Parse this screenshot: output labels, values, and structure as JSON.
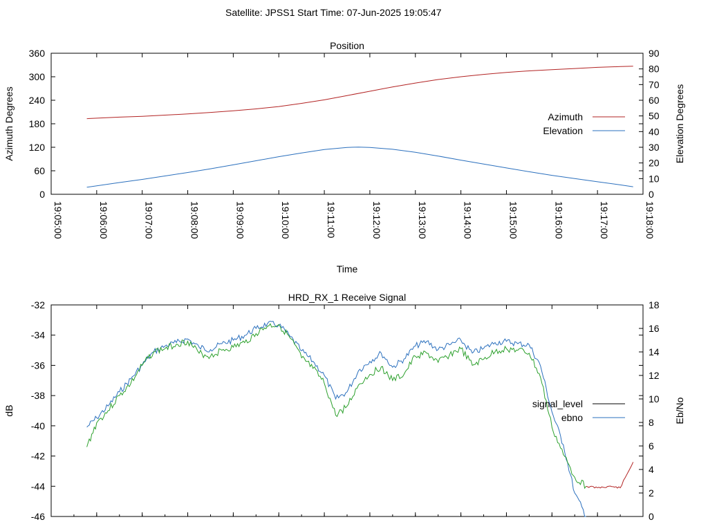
{
  "header": {
    "satellite_text": "Satellite: JPSS1",
    "start_time_text": "Start Time: 07-Jun-2025 19:05:47"
  },
  "chart_data": [
    {
      "type": "line",
      "title": "Position",
      "xlabel": "Time",
      "ylabel": "Azimuth Degrees",
      "y2label": "Elevation Degrees",
      "xlim": [
        "19:05:00",
        "19:18:00"
      ],
      "ylim": [
        0,
        360
      ],
      "y2lim": [
        0,
        90
      ],
      "x_tick_labels": [
        "19:05:00",
        "19:06:00",
        "19:07:00",
        "19:08:00",
        "19:09:00",
        "19:10:00",
        "19:11:00",
        "19:12:00",
        "19:13:00",
        "19:14:00",
        "19:15:00",
        "19:16:00",
        "19:17:00",
        "19:18:00"
      ],
      "y_tick_labels": [
        "0",
        "60",
        "120",
        "180",
        "240",
        "300",
        "360"
      ],
      "y2_tick_labels": [
        "0",
        "10",
        "20",
        "30",
        "40",
        "50",
        "60",
        "70",
        "80",
        "90"
      ],
      "legend_position": "right",
      "colors": {
        "azimuth": "#b22222",
        "elevation": "#2a6fbd"
      },
      "series": [
        {
          "name": "Azimuth",
          "axis": "y",
          "x": [
            "19:05:47",
            "19:06:30",
            "19:07:00",
            "19:07:30",
            "19:08:00",
            "19:08:30",
            "19:09:00",
            "19:09:30",
            "19:10:00",
            "19:10:30",
            "19:11:00",
            "19:11:30",
            "19:12:00",
            "19:12:30",
            "19:13:00",
            "19:13:30",
            "19:14:00",
            "19:14:30",
            "19:15:00",
            "19:15:30",
            "19:16:00",
            "19:16:30",
            "19:17:00",
            "19:17:30",
            "19:17:47"
          ],
          "values": [
            193,
            197,
            199,
            202,
            205,
            209,
            213,
            218,
            224,
            232,
            241,
            252,
            263,
            274,
            284,
            293,
            300,
            306,
            311,
            315,
            318,
            321,
            324,
            326,
            327
          ]
        },
        {
          "name": "Elevation",
          "axis": "y2",
          "x": [
            "19:05:47",
            "19:06:30",
            "19:07:00",
            "19:07:30",
            "19:08:00",
            "19:08:30",
            "19:09:00",
            "19:09:30",
            "19:10:00",
            "19:10:30",
            "19:11:00",
            "19:11:30",
            "19:11:45",
            "19:12:00",
            "19:12:30",
            "19:13:00",
            "19:13:30",
            "19:14:00",
            "19:14:30",
            "19:15:00",
            "19:15:30",
            "19:16:00",
            "19:16:30",
            "19:17:00",
            "19:17:30",
            "19:17:47"
          ],
          "values": [
            4.5,
            7.5,
            9.5,
            11.7,
            13.9,
            16.3,
            18.8,
            21.4,
            24.0,
            26.4,
            28.6,
            29.9,
            30.1,
            29.9,
            28.7,
            26.8,
            24.4,
            21.8,
            19.3,
            16.8,
            14.4,
            12.1,
            10.0,
            8.0,
            6.0,
            4.8
          ]
        }
      ]
    },
    {
      "type": "line",
      "title": "HRD_RX_1 Receive Signal",
      "ylabel": "dB",
      "y2label": "Eb/No",
      "xlim": [
        "19:05:00",
        "19:18:00"
      ],
      "ylim": [
        -46,
        -32
      ],
      "y2lim": [
        0,
        18
      ],
      "y_tick_labels": [
        "-46",
        "-44",
        "-42",
        "-40",
        "-38",
        "-36",
        "-34",
        "-32"
      ],
      "y2_tick_labels": [
        "0",
        "2",
        "4",
        "6",
        "8",
        "10",
        "12",
        "14",
        "16",
        "18"
      ],
      "legend_position": "right",
      "colors": {
        "signal_level": "#2ca02c",
        "signal_tail": "#b22222",
        "ebno": "#2a6fbd"
      },
      "series": [
        {
          "name": "signal_level",
          "axis": "y",
          "x": [
            "19:05:47",
            "19:06:00",
            "19:06:15",
            "19:06:30",
            "19:06:45",
            "19:07:00",
            "19:07:15",
            "19:07:30",
            "19:07:45",
            "19:08:00",
            "19:08:15",
            "19:08:30",
            "19:08:45",
            "19:09:00",
            "19:09:15",
            "19:09:30",
            "19:09:45",
            "19:10:00",
            "19:10:15",
            "19:10:30",
            "19:10:45",
            "19:11:00",
            "19:11:15",
            "19:11:30",
            "19:11:45",
            "19:12:00",
            "19:12:15",
            "19:12:30",
            "19:12:45",
            "19:13:00",
            "19:13:15",
            "19:13:30",
            "19:13:45",
            "19:14:00",
            "19:14:15",
            "19:14:30",
            "19:14:45",
            "19:15:00",
            "19:15:15",
            "19:15:30",
            "19:15:45",
            "19:16:00",
            "19:16:15",
            "19:16:30",
            "19:16:45",
            "19:17:00",
            "19:17:15",
            "19:17:30",
            "19:17:47"
          ],
          "values": [
            -41.4,
            -39.8,
            -39.0,
            -38.0,
            -37.2,
            -36.0,
            -35.1,
            -34.9,
            -34.6,
            -34.4,
            -35.2,
            -35.4,
            -35.0,
            -34.8,
            -34.5,
            -33.9,
            -33.4,
            -33.3,
            -34.2,
            -35.5,
            -36.2,
            -37.2,
            -39.3,
            -38.7,
            -37.3,
            -36.6,
            -36.1,
            -37.0,
            -36.6,
            -35.4,
            -35.2,
            -35.8,
            -35.3,
            -34.9,
            -36.0,
            -35.6,
            -35.1,
            -34.9,
            -35.0,
            -35.2,
            -36.8,
            -40.1,
            -41.9,
            -43.4,
            -44.0,
            -44.1,
            -44.0,
            -44.1,
            -42.4
          ]
        },
        {
          "name": "ebno",
          "axis": "y2",
          "x": [
            "19:05:47",
            "19:06:00",
            "19:06:15",
            "19:06:30",
            "19:06:45",
            "19:07:00",
            "19:07:15",
            "19:07:30",
            "19:07:45",
            "19:08:00",
            "19:08:15",
            "19:08:30",
            "19:08:45",
            "19:09:00",
            "19:09:15",
            "19:09:30",
            "19:09:45",
            "19:10:00",
            "19:10:15",
            "19:10:30",
            "19:10:45",
            "19:11:00",
            "19:11:15",
            "19:11:30",
            "19:11:45",
            "19:12:00",
            "19:12:15",
            "19:12:30",
            "19:12:45",
            "19:13:00",
            "19:13:15",
            "19:13:30",
            "19:13:45",
            "19:14:00",
            "19:14:15",
            "19:14:30",
            "19:14:45",
            "19:15:00",
            "19:15:15",
            "19:15:30",
            "19:15:45",
            "19:16:00",
            "19:16:15",
            "19:16:30",
            "19:16:45"
          ],
          "values": [
            7.6,
            8.4,
            9.4,
            10.6,
            11.7,
            12.9,
            14.0,
            14.5,
            14.8,
            15.1,
            14.4,
            14.2,
            14.7,
            15.0,
            15.4,
            16.0,
            16.4,
            16.3,
            15.3,
            14.1,
            13.2,
            12.0,
            10.0,
            10.6,
            12.4,
            13.2,
            13.9,
            12.7,
            13.4,
            14.5,
            14.9,
            14.2,
            14.6,
            15.0,
            13.9,
            14.3,
            14.8,
            14.9,
            14.7,
            14.6,
            12.8,
            8.9,
            6.1,
            2.0,
            0.0
          ]
        }
      ]
    }
  ]
}
